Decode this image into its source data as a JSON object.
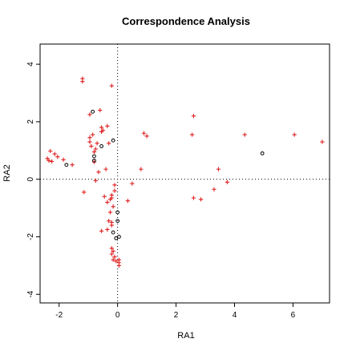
{
  "chart_data": {
    "type": "scatter",
    "title": "Correspondence Analysis",
    "xlabel": "RA1",
    "ylabel": "RA2",
    "xlim": [
      -2.65,
      7.25
    ],
    "ylim": [
      -4.3,
      4.7
    ],
    "xticks": [
      -2,
      0,
      2,
      4,
      6
    ],
    "yticks": [
      -4,
      -2,
      0,
      2,
      4
    ],
    "reference_lines": {
      "x": 0,
      "y": 0,
      "style": "dotted"
    },
    "colors": {
      "plus": "#e02020",
      "circle": "#000000",
      "axes": "#000000"
    },
    "series": [
      {
        "marker": "plus",
        "points": [
          [
            -2.4,
            0.72
          ],
          [
            -2.35,
            0.65
          ],
          [
            -2.3,
            0.98
          ],
          [
            -2.25,
            0.62
          ],
          [
            -2.15,
            0.88
          ],
          [
            -2.05,
            0.78
          ],
          [
            -1.85,
            0.68
          ],
          [
            -1.55,
            0.5
          ],
          [
            -1.2,
            3.5
          ],
          [
            -1.2,
            3.4
          ],
          [
            -1.15,
            -0.45
          ],
          [
            -0.95,
            2.25
          ],
          [
            -0.95,
            1.45
          ],
          [
            -0.95,
            1.3
          ],
          [
            -0.9,
            1.15
          ],
          [
            -0.85,
            1.55
          ],
          [
            -0.8,
            0.95
          ],
          [
            -0.8,
            0.6
          ],
          [
            -0.75,
            1.05
          ],
          [
            -0.7,
            1.25
          ],
          [
            -0.75,
            -0.05
          ],
          [
            -0.65,
            0.25
          ],
          [
            -0.6,
            2.4
          ],
          [
            -0.55,
            1.8
          ],
          [
            -0.55,
            1.65
          ],
          [
            -0.5,
            1.7
          ],
          [
            -0.35,
            1.85
          ],
          [
            -0.3,
            1.25
          ],
          [
            -0.2,
            3.25
          ],
          [
            -0.4,
            0.35
          ],
          [
            -0.45,
            -0.6
          ],
          [
            -0.55,
            -1.8
          ],
          [
            -0.35,
            -1.75
          ],
          [
            -0.35,
            -0.8
          ],
          [
            -0.3,
            -1.45
          ],
          [
            -0.25,
            -0.7
          ],
          [
            -0.2,
            -0.65
          ],
          [
            -0.2,
            -0.55
          ],
          [
            -0.25,
            -1.15
          ],
          [
            -0.2,
            -1.6
          ],
          [
            -0.2,
            -1.5
          ],
          [
            -0.15,
            -0.95
          ],
          [
            -0.1,
            -0.4
          ],
          [
            -0.1,
            -0.2
          ],
          [
            -0.2,
            -2.4
          ],
          [
            -0.15,
            -2.5
          ],
          [
            -0.2,
            -2.6
          ],
          [
            -0.1,
            -2.7
          ],
          [
            -0.15,
            -2.8
          ],
          [
            -0.05,
            -2.85
          ],
          [
            0.05,
            -2.8
          ],
          [
            0.05,
            -2.9
          ],
          [
            0.05,
            -3.0
          ],
          [
            0.35,
            -0.75
          ],
          [
            0.5,
            -0.15
          ],
          [
            0.8,
            0.35
          ],
          [
            0.9,
            1.6
          ],
          [
            1.0,
            1.5
          ],
          [
            2.55,
            1.55
          ],
          [
            2.6,
            2.2
          ],
          [
            2.6,
            -0.65
          ],
          [
            2.85,
            -0.7
          ],
          [
            3.3,
            -0.35
          ],
          [
            3.45,
            0.35
          ],
          [
            3.75,
            -0.1
          ],
          [
            4.35,
            1.55
          ],
          [
            6.05,
            1.55
          ],
          [
            7.0,
            1.3
          ]
        ]
      },
      {
        "marker": "circle",
        "points": [
          [
            -1.75,
            0.5
          ],
          [
            -0.85,
            2.35
          ],
          [
            -0.8,
            0.65
          ],
          [
            -0.8,
            0.8
          ],
          [
            -0.55,
            1.15
          ],
          [
            -0.15,
            1.35
          ],
          [
            -0.15,
            -1.85
          ],
          [
            -0.05,
            -2.05
          ],
          [
            0.05,
            -2.0
          ],
          [
            0.0,
            -1.15
          ],
          [
            0.0,
            -1.45
          ],
          [
            4.95,
            0.9
          ]
        ]
      }
    ]
  }
}
